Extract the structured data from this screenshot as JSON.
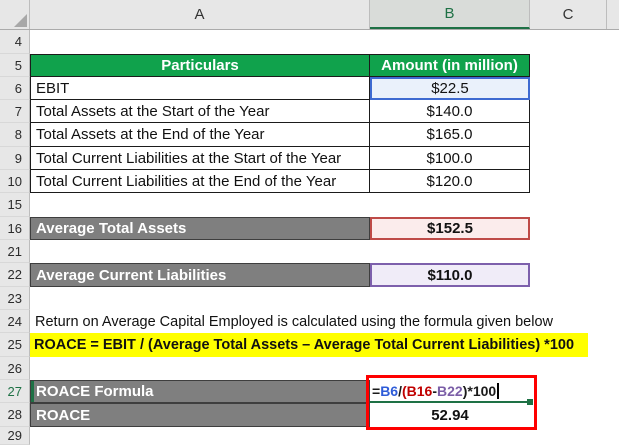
{
  "col_headers": {
    "corner": "",
    "a": "A",
    "b": "B",
    "c": "C"
  },
  "rows": {
    "r4": {
      "num": "4"
    },
    "r5": {
      "num": "5",
      "a": "Particulars",
      "b": "Amount (in million)"
    },
    "r6": {
      "num": "6",
      "a": "EBIT",
      "b": "$22.5"
    },
    "r7": {
      "num": "7",
      "a": "Total Assets at the Start of the Year",
      "b": "$140.0"
    },
    "r8": {
      "num": "8",
      "a": "Total Assets at the End of the Year",
      "b": "$165.0"
    },
    "r9": {
      "num": "9",
      "a": "Total Current Liabilities at the Start of the Year",
      "b": "$100.0"
    },
    "r10": {
      "num": "10",
      "a": "Total Current Liabilities at the End of the Year",
      "b": "$120.0"
    },
    "r15": {
      "num": "15"
    },
    "r16": {
      "num": "16",
      "a": "Average Total Assets",
      "b": "$152.5"
    },
    "r21": {
      "num": "21"
    },
    "r22": {
      "num": "22",
      "a": "Average Current Liabilities",
      "b": "$110.0"
    },
    "r23": {
      "num": "23"
    },
    "r24": {
      "num": "24",
      "a": "Return on Average Capital Employed is calculated using the formula given below"
    },
    "r25": {
      "num": "25",
      "a": "ROACE = EBIT / (Average Total Assets – Average Total Current Liabilities) *100"
    },
    "r26": {
      "num": "26"
    },
    "r27": {
      "num": "27",
      "a": "ROACE Formula"
    },
    "r28": {
      "num": "28",
      "a": "ROACE",
      "b": "52.94"
    },
    "r29": {
      "num": "29"
    }
  },
  "formula": {
    "cell": "B27",
    "full": "=B6/(B16-B22)*100",
    "parts": [
      {
        "text": "=",
        "color": "#1a1a1a"
      },
      {
        "text": "B6",
        "color": "#2E5CD8"
      },
      {
        "text": "/",
        "color": "#1a1a1a"
      },
      {
        "text": "(",
        "color": "#C00000"
      },
      {
        "text": "B16",
        "color": "#C00000"
      },
      {
        "text": "-",
        "color": "#1a1a1a"
      },
      {
        "text": "B22",
        "color": "#7B5EA7"
      },
      {
        "text": ")*100",
        "color": "#1a1a1a"
      }
    ]
  },
  "colors": {
    "header_green": "#10A24C",
    "label_gray": "#7F7F7F",
    "highlight_yellow": "#FFFF00",
    "selection_blue": "#2F5BD0",
    "range_red_border": "#BE4B48",
    "range_purple_border": "#7D60AC",
    "annotation_red": "#FE0000",
    "excel_green": "#1E7145"
  }
}
